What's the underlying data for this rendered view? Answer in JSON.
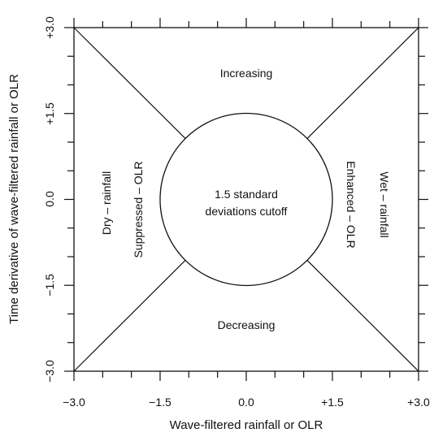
{
  "axes": {
    "x_label": "Wave-filtered rainfall or OLR",
    "y_label": "Time derivative of wave-filtered rainfall or OLR",
    "x_range": [
      -3.0,
      3.0
    ],
    "y_range": [
      -3.0,
      3.0
    ],
    "x_tick_labels": [
      "−3.0",
      "−1.5",
      "0.0",
      "+1.5",
      "+3.0"
    ],
    "y_tick_labels": [
      "−3.0",
      "−1.5",
      "0.0",
      "+1.5",
      "+3.0"
    ],
    "major_tick_step": 1.5,
    "minor_tick_step": 0.5
  },
  "circle": {
    "radius": 1.5,
    "label_line1": "1.5 standard",
    "label_line2": "deviations cutoff"
  },
  "regions": {
    "top": "Increasing",
    "bottom": "Decreasing",
    "left_outer": "Dry – rainfall",
    "left_inner": "Suppressed – OLR",
    "right_inner": "Enhanced – OLR",
    "right_outer": "Wet – rainfall"
  },
  "colors": {
    "line": "#111111",
    "background": "#ffffff"
  }
}
